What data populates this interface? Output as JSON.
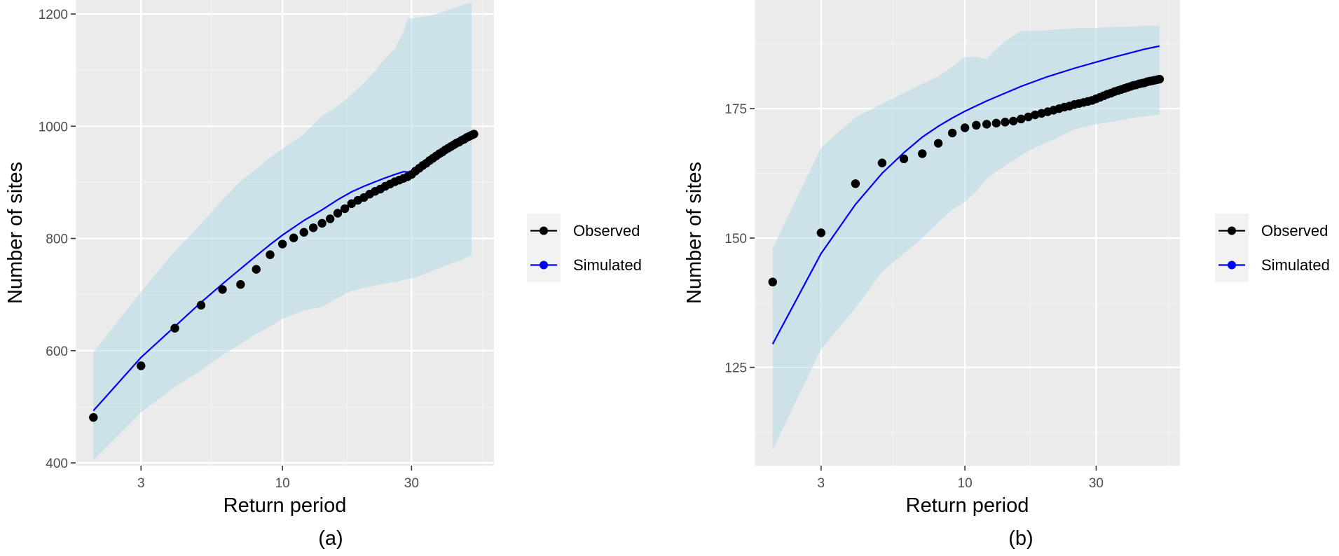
{
  "colors": {
    "panel_bg": "#ebebeb",
    "grid_major": "#ffffff",
    "grid_minor": "#f3f3f3",
    "ribbon": "#add8e6",
    "observed": "#000000",
    "simulated": "#0000ff",
    "legend_key_bg": "#f2f2f2"
  },
  "legend": {
    "position": "right",
    "entries": [
      {
        "label": "Observed",
        "color": "#000000",
        "marker": "point-line"
      },
      {
        "label": "Simulated",
        "color": "#0000ff",
        "marker": "point-line"
      }
    ]
  },
  "chart_data": [
    {
      "type": "line",
      "caption": "(a)",
      "xlabel": "Return period",
      "ylabel": "Number of sites",
      "xscale": "log",
      "xlim": [
        1.72,
        60.5
      ],
      "ylim": [
        395,
        1225
      ],
      "xticks": [
        3,
        10,
        30
      ],
      "xminor": [
        1.73,
        5.48,
        17.3,
        54.8
      ],
      "yticks": [
        400,
        600,
        800,
        1000,
        1200
      ],
      "yminor": [
        500,
        700,
        900,
        1100
      ],
      "grid": true,
      "series": [
        {
          "name": "Observed",
          "kind": "points",
          "x": [
            2.0,
            3.0,
            4.0,
            5.0,
            6.0,
            7.0,
            8.0,
            9.0,
            10.0,
            11.0,
            12.0,
            13.0,
            14.0,
            15.0,
            16.0,
            17.0,
            18.0,
            19.0,
            20.0,
            21.0,
            22.0,
            23.0,
            24.0,
            25.0,
            26.0,
            27.0,
            28.0,
            29.0,
            30.0,
            31.0,
            32.0,
            33.0,
            34.0,
            35.0,
            36.0,
            37.0,
            38.0,
            39.0,
            40.0,
            41.0,
            42.0,
            43.0,
            44.0,
            45.0,
            46.0,
            47.0,
            48.0,
            49.0,
            50.0,
            51.0
          ],
          "values": [
            481,
            573,
            640,
            681,
            709,
            718,
            745,
            771,
            790,
            801,
            811,
            819,
            827,
            835,
            845,
            853,
            862,
            868,
            873,
            879,
            884,
            888,
            893,
            897,
            901,
            904,
            907,
            910,
            914,
            920,
            925,
            930,
            934,
            939,
            943,
            947,
            951,
            954,
            958,
            961,
            964,
            967,
            970,
            972,
            975,
            977,
            980,
            982,
            984,
            986
          ]
        },
        {
          "name": "Simulated",
          "kind": "line",
          "x": [
            2.0,
            3.0,
            4.0,
            5.0,
            6.0,
            7.0,
            8.0,
            9.0,
            10.0,
            12.0,
            14.0,
            16.0,
            18.0,
            20.0,
            22.0,
            24.0,
            26.0,
            28.0,
            30.0
          ],
          "values": [
            493,
            588,
            643,
            686,
            719,
            746,
            769,
            789,
            806,
            832,
            851,
            869,
            883,
            893,
            901,
            908,
            914,
            919,
            918
          ]
        },
        {
          "name": "Band",
          "kind": "ribbon",
          "x": [
            2.0,
            3.0,
            4.0,
            5.0,
            6.0,
            7.0,
            8.0,
            9.0,
            10.0,
            12.0,
            14.0,
            16.0,
            18.0,
            20.0,
            22.0,
            24.0,
            26.0,
            28.0,
            29.0,
            30.0,
            35.0,
            40.0,
            45.0,
            50.0
          ],
          "lower": [
            405,
            490,
            535,
            565,
            592,
            612,
            630,
            643,
            657,
            672,
            678,
            694,
            706,
            712,
            716,
            720,
            722,
            726,
            728,
            728,
            740,
            752,
            760,
            770
          ],
          "upper": [
            597,
            705,
            777,
            826,
            869,
            902,
            924,
            944,
            960,
            986,
            1018,
            1036,
            1056,
            1077,
            1099,
            1121,
            1138,
            1168,
            1192,
            1192,
            1197,
            1205,
            1214,
            1220
          ]
        }
      ]
    },
    {
      "type": "line",
      "caption": "(b)",
      "xlabel": "Return period",
      "ylabel": "Number of sites",
      "xscale": "log",
      "xlim": [
        1.72,
        60.5
      ],
      "ylim": [
        106,
        196
      ],
      "xticks": [
        3,
        10,
        30
      ],
      "xminor": [
        1.73,
        5.48,
        17.3,
        54.8
      ],
      "yticks": [
        125,
        150,
        175
      ],
      "yminor": [
        112.5,
        137.5,
        162.5,
        187.5
      ],
      "grid": true,
      "series": [
        {
          "name": "Observed",
          "kind": "points",
          "x": [
            2.0,
            3.0,
            4.0,
            5.0,
            6.0,
            7.0,
            8.0,
            9.0,
            10.0,
            11.0,
            12.0,
            13.0,
            14.0,
            15.0,
            16.0,
            17.0,
            18.0,
            19.0,
            20.0,
            21.0,
            22.0,
            23.0,
            24.0,
            25.0,
            26.0,
            27.0,
            28.0,
            29.0,
            30.0,
            31.0,
            32.0,
            33.0,
            34.0,
            35.0,
            36.0,
            37.0,
            38.0,
            39.0,
            40.0,
            41.0,
            42.0,
            43.0,
            44.0,
            45.0,
            46.0,
            47.0,
            48.0,
            49.0,
            50.0,
            51.0
          ],
          "values": [
            141.5,
            151,
            160.5,
            164.5,
            165.3,
            166.3,
            168.3,
            170.3,
            171.3,
            171.8,
            172.0,
            172.2,
            172.4,
            172.6,
            173.0,
            173.4,
            173.8,
            174.1,
            174.4,
            174.7,
            175.0,
            175.3,
            175.5,
            175.8,
            176.0,
            176.2,
            176.4,
            176.6,
            176.9,
            177.2,
            177.5,
            177.8,
            178.0,
            178.3,
            178.5,
            178.7,
            178.9,
            179.1,
            179.3,
            179.5,
            179.6,
            179.8,
            179.9,
            180.0,
            180.2,
            180.3,
            180.4,
            180.5,
            180.6,
            180.7
          ]
        },
        {
          "name": "Simulated",
          "kind": "line",
          "x": [
            2.0,
            3.0,
            4.0,
            5.0,
            6.0,
            7.0,
            8.0,
            9.0,
            10.0,
            12.0,
            14.0,
            16.0,
            18.0,
            20.0,
            25.0,
            30.0,
            35.0,
            40.0,
            45.0,
            50.0,
            51.0
          ],
          "values": [
            129.5,
            147,
            156.5,
            162.5,
            166.5,
            169.5,
            171.6,
            173.2,
            174.5,
            176.5,
            178.0,
            179.3,
            180.3,
            181.2,
            182.8,
            184.0,
            185.0,
            185.8,
            186.5,
            187.0,
            187.1
          ]
        },
        {
          "name": "Band",
          "kind": "ribbon",
          "x": [
            2.0,
            3.0,
            4.0,
            5.0,
            6.0,
            7.0,
            8.0,
            9.0,
            10.0,
            11.0,
            12.0,
            14.0,
            16.0,
            18.0,
            20.0,
            25.0,
            30.0,
            35.0,
            40.0,
            45.0,
            50.0,
            51.0
          ],
          "lower": [
            109,
            128.5,
            136.5,
            143.5,
            147,
            150,
            153,
            155.5,
            157,
            159,
            161.5,
            164,
            166,
            167.5,
            168.5,
            171,
            172,
            172.5,
            173.2,
            173.5,
            173.8,
            174
          ],
          "upper": [
            148,
            167.5,
            173.3,
            176,
            178,
            179.8,
            181.2,
            183.1,
            185,
            185,
            184.6,
            188.1,
            190,
            190,
            190.2,
            190.5,
            190.6,
            190.8,
            190.8,
            191,
            191,
            191
          ]
        }
      ]
    }
  ]
}
